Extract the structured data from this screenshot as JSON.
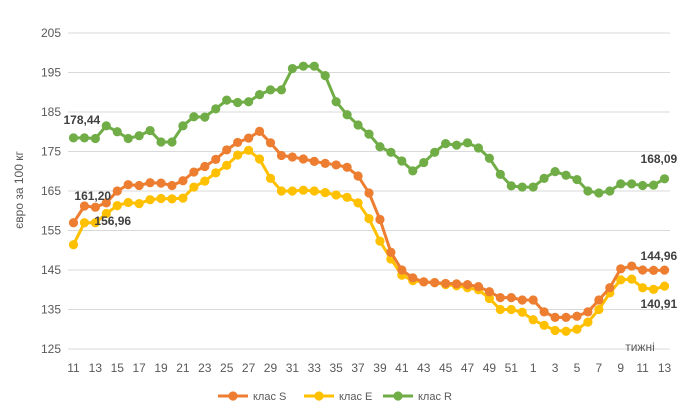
{
  "chart_data": {
    "type": "line",
    "title": "",
    "ylabel": "євро за  100 кг",
    "xlabel": "тижні",
    "ylim": [
      125,
      205
    ],
    "yticks": [
      125,
      135,
      145,
      155,
      165,
      175,
      185,
      195,
      205
    ],
    "grid": true,
    "legend_position": "bottom",
    "x": [
      11,
      12,
      13,
      14,
      15,
      16,
      17,
      18,
      19,
      20,
      21,
      22,
      23,
      24,
      25,
      26,
      27,
      28,
      29,
      30,
      31,
      32,
      33,
      34,
      35,
      36,
      37,
      38,
      39,
      40,
      41,
      42,
      43,
      44,
      45,
      46,
      47,
      48,
      49,
      50,
      51,
      52,
      1,
      2,
      3,
      4,
      5,
      6,
      7,
      8,
      9,
      10,
      11,
      12,
      13
    ],
    "xtick_labels": [
      "11",
      "13",
      "15",
      "17",
      "19",
      "21",
      "23",
      "25",
      "27",
      "29",
      "31",
      "33",
      "35",
      "37",
      "39",
      "41",
      "43",
      "45",
      "47",
      "49",
      "51",
      "1",
      "3",
      "5",
      "7",
      "9",
      "11",
      "13"
    ],
    "series": [
      {
        "name": "клас S",
        "color": "#ED7D31",
        "values": [
          156.96,
          161.2,
          160.9,
          162,
          165,
          166.6,
          166.4,
          167.1,
          167,
          166.4,
          167.6,
          169.8,
          171.2,
          173,
          175.4,
          177.3,
          178.4,
          180.1,
          177.2,
          174,
          173.6,
          173.1,
          172.5,
          172,
          171.6,
          171,
          168.8,
          164.5,
          157.8,
          149.5,
          145,
          143,
          142,
          141.8,
          141.6,
          141.5,
          141.3,
          140.8,
          139.5,
          138,
          138,
          137.4,
          137.4,
          134.4,
          133,
          133,
          133.3,
          134.4,
          137.4,
          140.5,
          145.3,
          146,
          145,
          144.9,
          144.96
        ],
        "labels": [
          {
            "index": 1,
            "text": "161,20"
          },
          {
            "index": 54,
            "text": "144,96"
          }
        ]
      },
      {
        "name": "клас E",
        "color": "#FFC000",
        "values": [
          151.4,
          156.96,
          156.96,
          159.3,
          161.3,
          162.1,
          161.8,
          162.8,
          163.1,
          163,
          163.2,
          166,
          167.5,
          169.6,
          171.5,
          174.1,
          175.3,
          173.1,
          168.2,
          165,
          165,
          165.2,
          165,
          164.6,
          164,
          163.4,
          162,
          158,
          152.3,
          147.8,
          143.7,
          142.3,
          142,
          141.8,
          141.3,
          141,
          140.5,
          140,
          137.8,
          135,
          135,
          134.3,
          132.4,
          131,
          129.7,
          129.5,
          130,
          131.8,
          135,
          139.2,
          142.5,
          142.7,
          140.5,
          140.1,
          140.91
        ],
        "labels": [
          {
            "index": 1,
            "text": "156,96"
          },
          {
            "index": 54,
            "text": "140,91"
          }
        ]
      },
      {
        "name": "клас R",
        "color": "#70AD47",
        "values": [
          178.44,
          178.44,
          178.3,
          181.5,
          180,
          178.3,
          179,
          180.3,
          177.4,
          177.4,
          181.5,
          183.8,
          183.7,
          185.8,
          188,
          187.4,
          187.6,
          189.4,
          190.6,
          190.6,
          196,
          196.6,
          196.6,
          194.2,
          187.6,
          184.3,
          181.7,
          179.4,
          176.2,
          174.8,
          172.6,
          170.1,
          172.2,
          174.8,
          177,
          176.6,
          177.2,
          175.9,
          173.3,
          169.2,
          166.3,
          166,
          166,
          168.2,
          169.9,
          169,
          167.9,
          165,
          164.5,
          165,
          166.8,
          166.8,
          166.4,
          166.5,
          168.09
        ],
        "labels": [
          {
            "index": 0,
            "text": "178,44"
          },
          {
            "index": 54,
            "text": "168,09"
          }
        ]
      }
    ]
  }
}
